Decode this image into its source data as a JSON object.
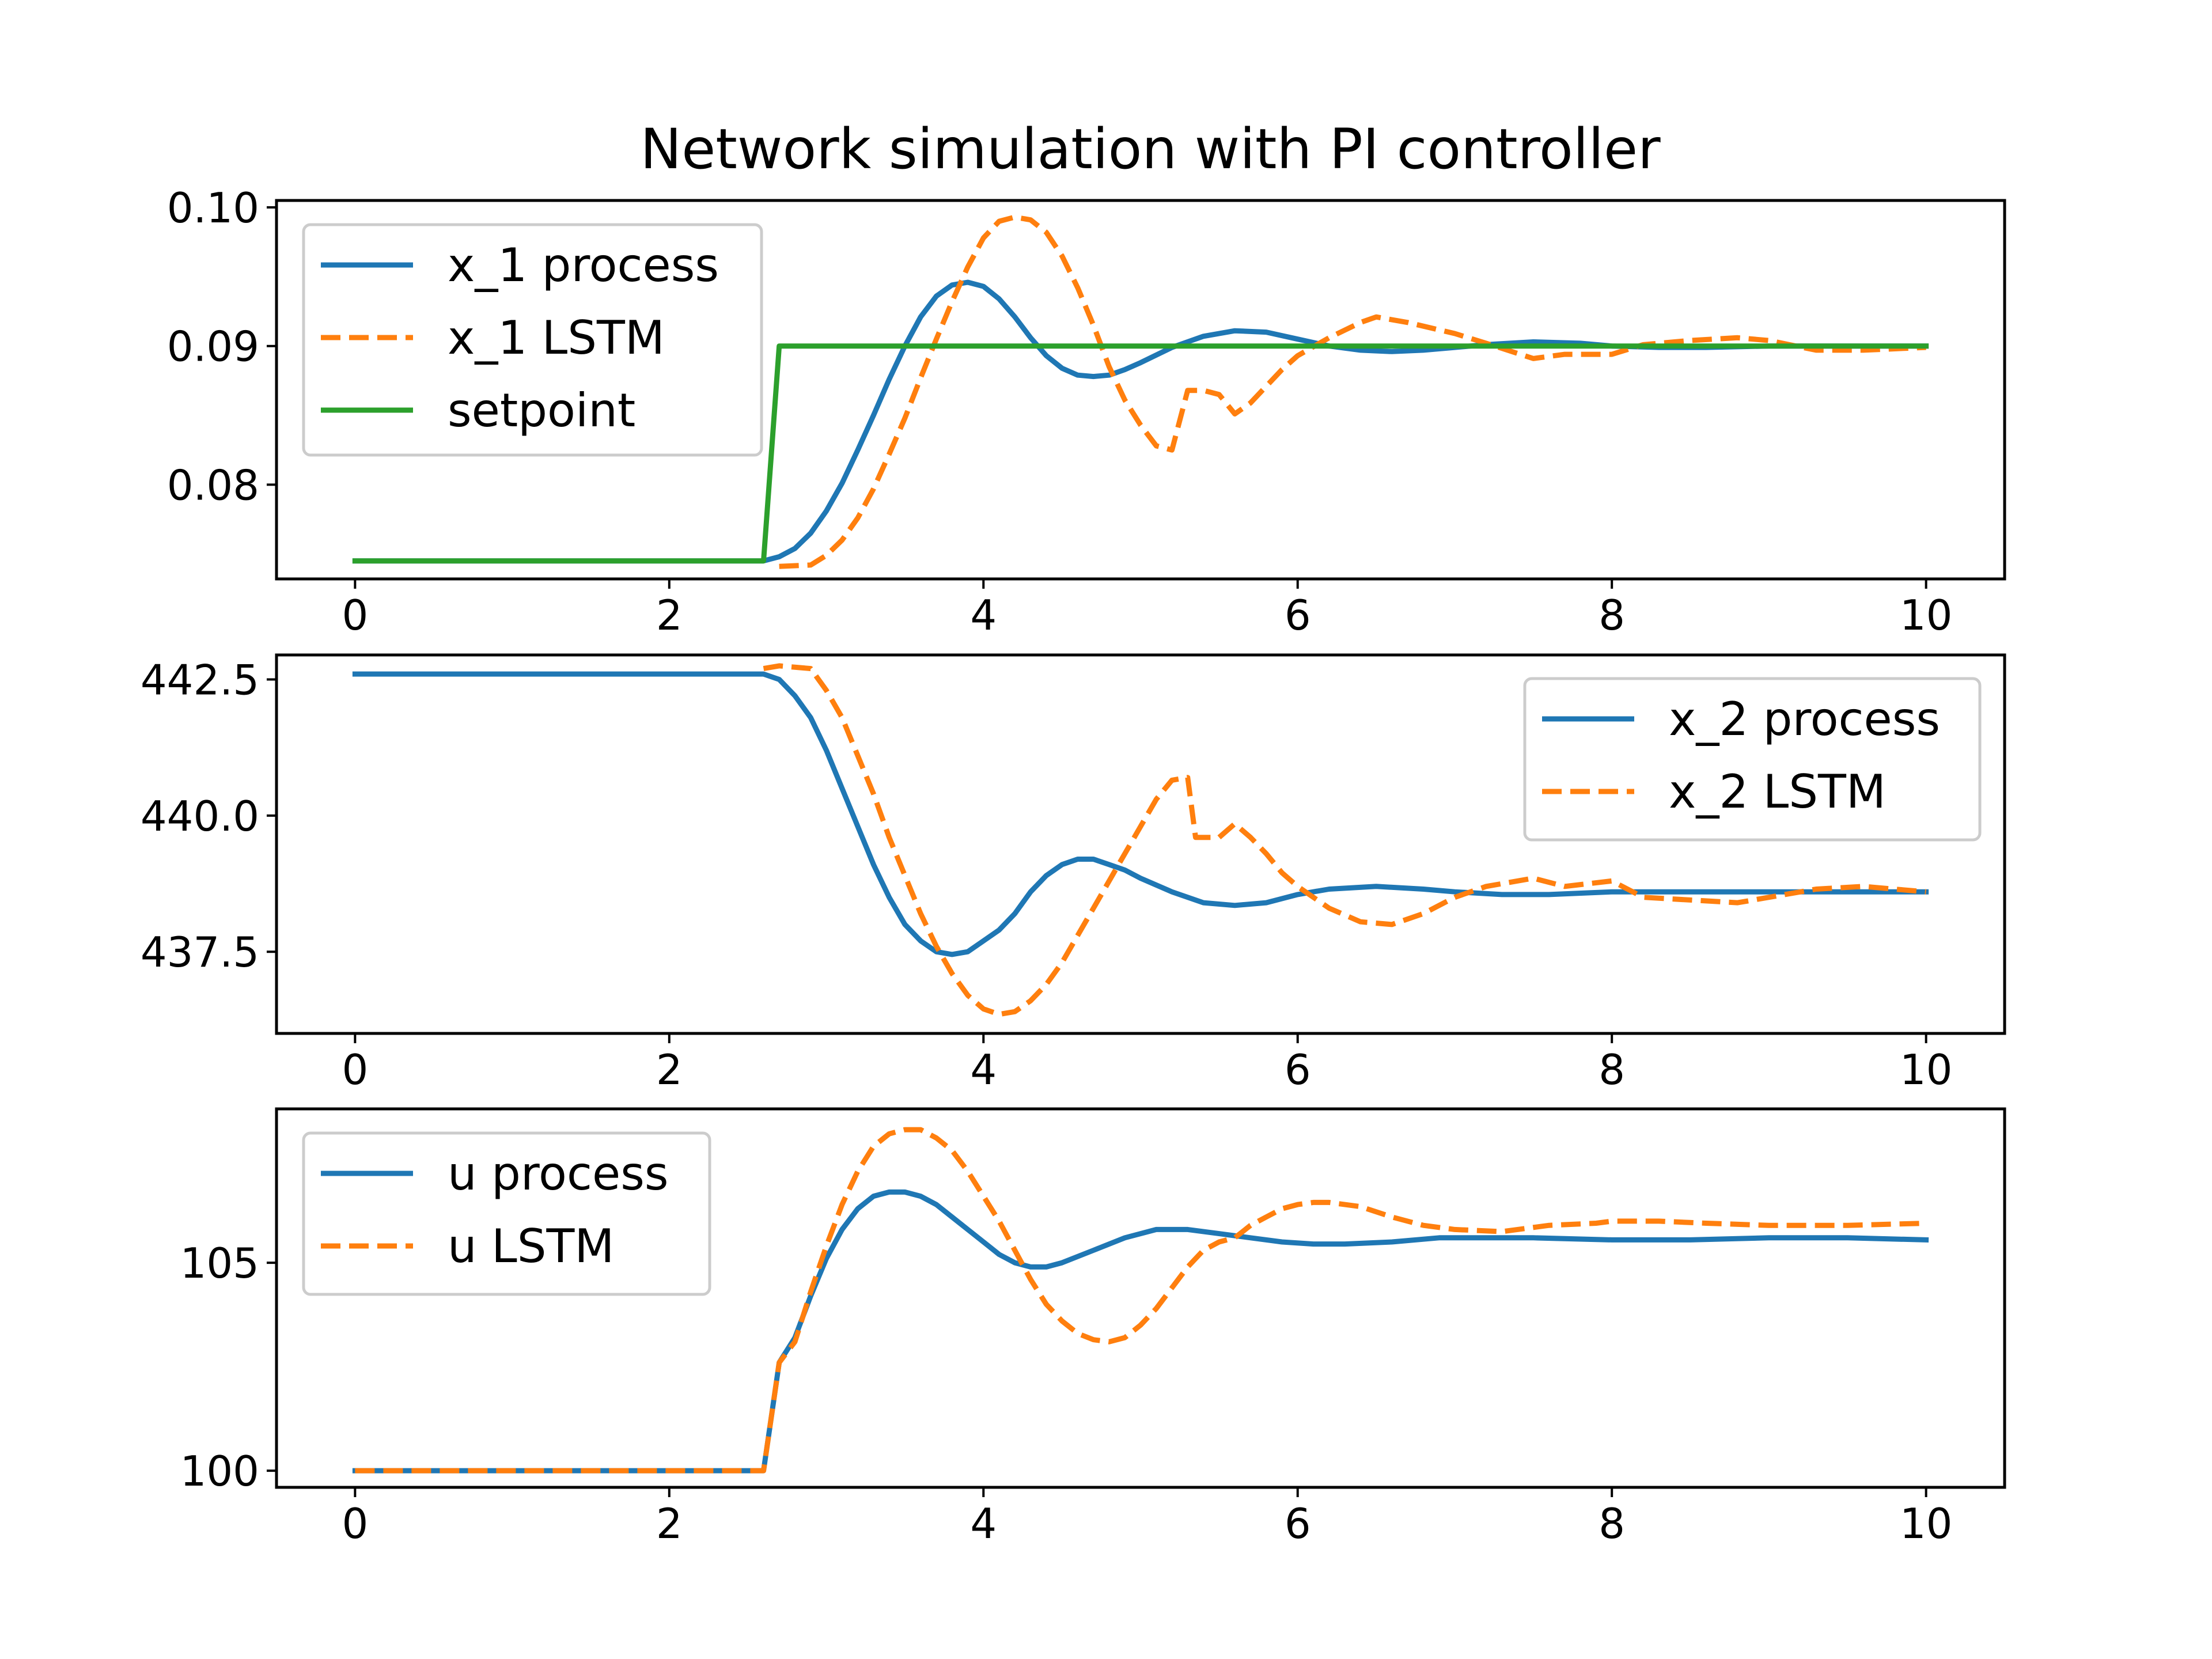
{
  "figure_title": "Network simulation with PI controller",
  "colors": {
    "process": "#1f77b4",
    "lstm": "#ff7f0e",
    "setpoint": "#2ca02c"
  },
  "chart_data": [
    {
      "type": "line",
      "xlim": [
        -0.5,
        10.5
      ],
      "ylim": [
        0.0732,
        0.1005
      ],
      "xticks": [
        0,
        2,
        4,
        6,
        8,
        10
      ],
      "xtick_labels": [
        "0",
        "2",
        "4",
        "6",
        "8",
        "10"
      ],
      "yticks": [
        0.08,
        0.09,
        0.1
      ],
      "ytick_labels": [
        "0.08",
        "0.09",
        "0.10"
      ],
      "legend_position": "upper-left",
      "series": [
        {
          "name": "x_1 process",
          "style": "solid",
          "color": "#1f77b4",
          "x": [
            0,
            2.6,
            2.7,
            2.8,
            2.9,
            3.0,
            3.1,
            3.2,
            3.3,
            3.4,
            3.5,
            3.6,
            3.7,
            3.8,
            3.9,
            4.0,
            4.1,
            4.2,
            4.3,
            4.4,
            4.5,
            4.6,
            4.7,
            4.8,
            4.9,
            5.0,
            5.2,
            5.4,
            5.6,
            5.8,
            6.0,
            6.2,
            6.4,
            6.6,
            6.8,
            7.0,
            7.2,
            7.5,
            7.8,
            8.0,
            8.3,
            8.6,
            9.0,
            9.5,
            10.0
          ],
          "y": [
            0.0745,
            0.0745,
            0.0748,
            0.0754,
            0.0765,
            0.0781,
            0.0801,
            0.0825,
            0.085,
            0.0876,
            0.09,
            0.0921,
            0.0936,
            0.0944,
            0.0946,
            0.0943,
            0.0934,
            0.0921,
            0.0906,
            0.0893,
            0.0884,
            0.0879,
            0.0878,
            0.0879,
            0.0883,
            0.0888,
            0.0899,
            0.0907,
            0.0911,
            0.091,
            0.0905,
            0.09,
            0.0897,
            0.0896,
            0.0897,
            0.0899,
            0.0901,
            0.0903,
            0.0902,
            0.09,
            0.0899,
            0.0899,
            0.09,
            0.09,
            0.09
          ]
        },
        {
          "name": "x_1 LSTM",
          "style": "dashed",
          "color": "#ff7f0e",
          "x": [
            2.7,
            2.9,
            3.0,
            3.1,
            3.2,
            3.3,
            3.4,
            3.5,
            3.6,
            3.7,
            3.8,
            3.9,
            4.0,
            4.1,
            4.2,
            4.3,
            4.4,
            4.5,
            4.6,
            4.7,
            4.8,
            4.9,
            5.0,
            5.1,
            5.2,
            5.3,
            5.4,
            5.5,
            5.6,
            5.7,
            5.8,
            5.9,
            6.0,
            6.2,
            6.4,
            6.5,
            6.7,
            7.0,
            7.2,
            7.5,
            7.7,
            8.0,
            8.2,
            8.5,
            8.8,
            9.0,
            9.3,
            9.6,
            10.0
          ],
          "y": [
            0.0741,
            0.0742,
            0.0749,
            0.076,
            0.0776,
            0.0797,
            0.0822,
            0.0848,
            0.0877,
            0.0905,
            0.0932,
            0.0957,
            0.0978,
            0.099,
            0.0993,
            0.0991,
            0.0982,
            0.0965,
            0.0942,
            0.0915,
            0.0885,
            0.0861,
            0.0843,
            0.0828,
            0.0825,
            0.0868,
            0.0868,
            0.0865,
            0.0851,
            0.0859,
            0.0871,
            0.0883,
            0.0893,
            0.0906,
            0.0917,
            0.0921,
            0.0917,
            0.0909,
            0.0902,
            0.0891,
            0.0894,
            0.0894,
            0.0901,
            0.0904,
            0.0906,
            0.0904,
            0.0897,
            0.0897,
            0.0899
          ]
        },
        {
          "name": "setpoint",
          "style": "solid",
          "color": "#2ca02c",
          "x": [
            0,
            2.6,
            2.7,
            10.0
          ],
          "y": [
            0.0745,
            0.0745,
            0.09,
            0.09
          ]
        }
      ]
    },
    {
      "type": "line",
      "xlim": [
        -0.5,
        10.5
      ],
      "ylim": [
        436.0,
        442.95
      ],
      "xticks": [
        0,
        2,
        4,
        6,
        8,
        10
      ],
      "xtick_labels": [
        "0",
        "2",
        "4",
        "6",
        "8",
        "10"
      ],
      "yticks": [
        437.5,
        440.0,
        442.5
      ],
      "ytick_labels": [
        "437.5",
        "440.0",
        "442.5"
      ],
      "legend_position": "upper-right",
      "series": [
        {
          "name": "x_2 process",
          "style": "solid",
          "color": "#1f77b4",
          "x": [
            0,
            2.6,
            2.7,
            2.8,
            2.9,
            3.0,
            3.1,
            3.2,
            3.3,
            3.4,
            3.5,
            3.6,
            3.7,
            3.8,
            3.9,
            4.0,
            4.1,
            4.2,
            4.3,
            4.4,
            4.5,
            4.6,
            4.7,
            4.8,
            4.9,
            5.0,
            5.2,
            5.4,
            5.6,
            5.8,
            6.0,
            6.2,
            6.5,
            6.8,
            7.0,
            7.3,
            7.6,
            8.0,
            8.5,
            9.0,
            9.5,
            10.0
          ],
          "y": [
            442.6,
            442.6,
            442.5,
            442.2,
            441.8,
            441.2,
            440.5,
            439.8,
            439.1,
            438.5,
            438.0,
            437.7,
            437.5,
            437.45,
            437.5,
            437.7,
            437.9,
            438.2,
            438.6,
            438.9,
            439.1,
            439.2,
            439.2,
            439.1,
            439.0,
            438.85,
            438.6,
            438.4,
            438.35,
            438.4,
            438.55,
            438.65,
            438.7,
            438.65,
            438.6,
            438.55,
            438.55,
            438.6,
            438.6,
            438.6,
            438.6,
            438.6
          ]
        },
        {
          "name": "x_2 LSTM",
          "style": "dashed",
          "color": "#ff7f0e",
          "x": [
            2.6,
            2.7,
            2.9,
            3.0,
            3.1,
            3.2,
            3.3,
            3.4,
            3.5,
            3.6,
            3.7,
            3.8,
            3.9,
            4.0,
            4.1,
            4.2,
            4.3,
            4.4,
            4.5,
            4.6,
            4.7,
            4.8,
            4.9,
            5.0,
            5.1,
            5.2,
            5.3,
            5.35,
            5.5,
            5.6,
            5.7,
            5.8,
            5.9,
            6.0,
            6.2,
            6.4,
            6.6,
            6.8,
            7.0,
            7.2,
            7.5,
            7.7,
            8.0,
            8.2,
            8.5,
            8.8,
            9.0,
            9.3,
            9.6,
            10.0
          ],
          "y": [
            442.7,
            442.75,
            442.7,
            442.3,
            441.8,
            441.1,
            440.4,
            439.6,
            438.9,
            438.2,
            437.6,
            437.1,
            436.7,
            436.45,
            436.35,
            436.4,
            436.6,
            436.9,
            437.3,
            437.8,
            438.3,
            438.8,
            439.3,
            439.8,
            440.3,
            440.65,
            440.7,
            439.6,
            439.6,
            439.85,
            439.6,
            439.3,
            438.95,
            438.7,
            438.3,
            438.05,
            438.0,
            438.2,
            438.5,
            438.7,
            438.85,
            438.7,
            438.8,
            438.5,
            438.45,
            438.4,
            438.5,
            438.65,
            438.7,
            438.6
          ]
        }
      ]
    },
    {
      "type": "line",
      "xlim": [
        -0.5,
        10.5
      ],
      "ylim": [
        99.6,
        108.7
      ],
      "xticks": [
        0,
        2,
        4,
        6,
        8,
        10
      ],
      "xtick_labels": [
        "0",
        "2",
        "4",
        "6",
        "8",
        "10"
      ],
      "yticks": [
        100,
        105
      ],
      "ytick_labels": [
        "100",
        "105"
      ],
      "legend_position": "upper-left",
      "series": [
        {
          "name": "u process",
          "style": "solid",
          "color": "#1f77b4",
          "x": [
            0,
            2.6,
            2.7,
            2.8,
            2.9,
            3.0,
            3.1,
            3.2,
            3.3,
            3.4,
            3.5,
            3.6,
            3.7,
            3.8,
            3.9,
            4.0,
            4.1,
            4.2,
            4.3,
            4.4,
            4.5,
            4.7,
            4.9,
            5.1,
            5.3,
            5.5,
            5.7,
            5.9,
            6.1,
            6.3,
            6.6,
            6.9,
            7.2,
            7.5,
            8.0,
            8.5,
            9.0,
            9.5,
            10.0
          ],
          "y": [
            100.0,
            100.0,
            102.6,
            103.2,
            104.2,
            105.1,
            105.8,
            106.3,
            106.6,
            106.7,
            106.7,
            106.6,
            106.4,
            106.1,
            105.8,
            105.5,
            105.2,
            105.0,
            104.9,
            104.9,
            105.0,
            105.3,
            105.6,
            105.8,
            105.8,
            105.7,
            105.6,
            105.5,
            105.45,
            105.45,
            105.5,
            105.6,
            105.6,
            105.6,
            105.55,
            105.55,
            105.6,
            105.6,
            105.55
          ]
        },
        {
          "name": "u LSTM",
          "style": "dashed",
          "color": "#ff7f0e",
          "x": [
            0,
            2.6,
            2.7,
            2.8,
            2.9,
            3.0,
            3.1,
            3.2,
            3.3,
            3.4,
            3.5,
            3.6,
            3.7,
            3.8,
            3.9,
            4.0,
            4.1,
            4.2,
            4.3,
            4.4,
            4.5,
            4.6,
            4.7,
            4.8,
            4.9,
            5.0,
            5.1,
            5.2,
            5.3,
            5.4,
            5.5,
            5.6,
            5.7,
            5.8,
            5.9,
            6.0,
            6.1,
            6.2,
            6.4,
            6.6,
            6.8,
            7.0,
            7.3,
            7.6,
            7.9,
            8.0,
            8.3,
            8.6,
            9.0,
            9.5,
            10.0
          ],
          "y": [
            100.0,
            100.0,
            102.6,
            103.1,
            104.3,
            105.4,
            106.4,
            107.2,
            107.8,
            108.1,
            108.2,
            108.2,
            108.0,
            107.7,
            107.2,
            106.6,
            106.0,
            105.3,
            104.6,
            104.0,
            103.6,
            103.3,
            103.15,
            103.1,
            103.2,
            103.5,
            103.9,
            104.4,
            104.9,
            105.3,
            105.5,
            105.6,
            105.9,
            106.1,
            106.3,
            106.4,
            106.45,
            106.45,
            106.35,
            106.1,
            105.9,
            105.8,
            105.75,
            105.9,
            105.95,
            106.0,
            106.0,
            105.95,
            105.9,
            105.9,
            105.95
          ]
        }
      ]
    }
  ]
}
